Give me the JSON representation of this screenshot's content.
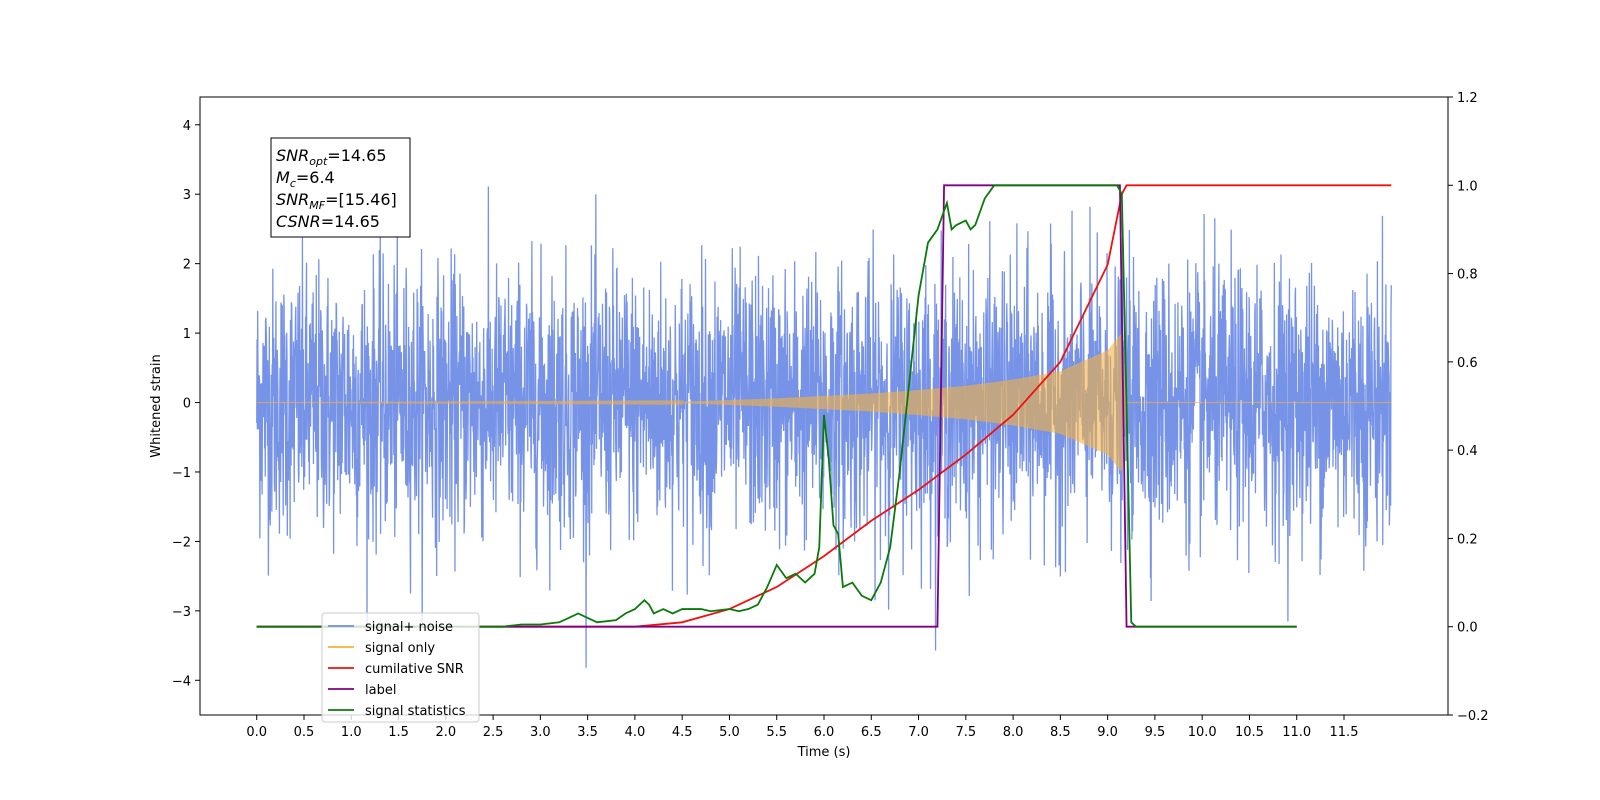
{
  "chart_data": {
    "type": "line",
    "title": "",
    "xlabel": "Time (s)",
    "ylabel": "Whitened strain",
    "xlim": [
      -0.6,
      12.6
    ],
    "ylim": [
      -4.5,
      4.4
    ],
    "y2lim": [
      -0.2,
      1.2
    ],
    "x_ticks": [
      0.0,
      0.5,
      1.0,
      1.5,
      2.0,
      2.5,
      3.0,
      3.5,
      4.0,
      4.5,
      5.0,
      5.5,
      6.0,
      6.5,
      7.0,
      7.5,
      8.0,
      8.5,
      9.0,
      9.5,
      10.0,
      10.5,
      11.0,
      11.5
    ],
    "x_tick_labels": [
      "0.0",
      "0.5",
      "1.0",
      "1.5",
      "2.0",
      "2.5",
      "3.0",
      "3.5",
      "4.0",
      "4.5",
      "5.0",
      "5.5",
      "6.0",
      "6.5",
      "7.0",
      "7.5",
      "8.0",
      "8.5",
      "9.0",
      "9.5",
      "10.0",
      "10.5",
      "11.0",
      "11.5"
    ],
    "y_ticks": [
      -4,
      -3,
      -2,
      -1,
      0,
      1,
      2,
      3,
      4
    ],
    "y_tick_labels": [
      "−4",
      "−3",
      "−2",
      "−1",
      "0",
      "1",
      "2",
      "3",
      "4"
    ],
    "y2_ticks": [
      -0.2,
      0.0,
      0.2,
      0.4,
      0.6,
      0.8,
      1.0,
      1.2
    ],
    "y2_tick_labels": [
      "−0.2",
      "0.0",
      "0.2",
      "0.4",
      "0.6",
      "0.8",
      "1.0",
      "1.2"
    ],
    "legend_position": "lower-left",
    "series": [
      {
        "name": "signal+ noise",
        "axis": "left",
        "color": "#6f8de6",
        "kind": "noise",
        "x_range": [
          0.0,
          12.0
        ],
        "sigma": 1.0,
        "peak_max": 4.0,
        "peak_min": -4.1
      },
      {
        "name": "signal only",
        "axis": "left",
        "color": "#f5b041",
        "kind": "chirp",
        "x_range": [
          0.0,
          12.0
        ],
        "envelope": [
          [
            0.0,
            0.0
          ],
          [
            4.5,
            0.01
          ],
          [
            5.5,
            0.06
          ],
          [
            6.5,
            0.13
          ],
          [
            7.0,
            0.18
          ],
          [
            7.5,
            0.24
          ],
          [
            8.0,
            0.33
          ],
          [
            8.5,
            0.45
          ],
          [
            9.0,
            0.75
          ],
          [
            9.15,
            1.0
          ],
          [
            9.2,
            0.0
          ],
          [
            12.0,
            0.0
          ]
        ]
      },
      {
        "name": "cumilative SNR",
        "axis": "right",
        "color": "#ee1111",
        "x": [
          0.0,
          4.0,
          4.5,
          5.0,
          5.5,
          6.0,
          6.5,
          7.0,
          7.5,
          8.0,
          8.5,
          9.0,
          9.15,
          9.2,
          12.0
        ],
        "y": [
          0.0,
          0.0,
          0.01,
          0.04,
          0.09,
          0.16,
          0.24,
          0.31,
          0.39,
          0.48,
          0.6,
          0.82,
          0.98,
          1.0,
          1.0
        ]
      },
      {
        "name": "label",
        "axis": "right",
        "color": "#800080",
        "x": [
          0.0,
          7.2,
          7.27,
          9.13,
          9.2,
          11.0
        ],
        "y": [
          0.0,
          0.0,
          1.0,
          1.0,
          0.0,
          0.0
        ]
      },
      {
        "name": "signal statistics",
        "axis": "right",
        "color": "#0a7a0a",
        "x": [
          0.0,
          2.6,
          2.8,
          3.0,
          3.2,
          3.3,
          3.4,
          3.5,
          3.6,
          3.8,
          3.9,
          4.0,
          4.1,
          4.15,
          4.2,
          4.3,
          4.4,
          4.5,
          4.6,
          4.7,
          4.8,
          5.0,
          5.1,
          5.2,
          5.3,
          5.4,
          5.5,
          5.6,
          5.7,
          5.8,
          5.9,
          5.95,
          6.0,
          6.05,
          6.1,
          6.15,
          6.2,
          6.3,
          6.4,
          6.5,
          6.6,
          6.7,
          6.8,
          6.9,
          7.0,
          7.1,
          7.2,
          7.3,
          7.35,
          7.4,
          7.5,
          7.55,
          7.6,
          7.7,
          7.8,
          7.9,
          8.0,
          8.5,
          9.1,
          9.15,
          9.2,
          9.25,
          9.3,
          9.5,
          11.0
        ],
        "y": [
          0.0,
          0.0,
          0.005,
          0.005,
          0.01,
          0.02,
          0.03,
          0.02,
          0.01,
          0.015,
          0.03,
          0.04,
          0.06,
          0.05,
          0.03,
          0.04,
          0.03,
          0.04,
          0.04,
          0.04,
          0.035,
          0.04,
          0.035,
          0.04,
          0.05,
          0.09,
          0.14,
          0.11,
          0.12,
          0.1,
          0.12,
          0.18,
          0.48,
          0.38,
          0.23,
          0.21,
          0.09,
          0.1,
          0.07,
          0.06,
          0.1,
          0.18,
          0.35,
          0.55,
          0.75,
          0.87,
          0.9,
          0.96,
          0.9,
          0.91,
          0.92,
          0.9,
          0.91,
          0.97,
          1.0,
          1.0,
          1.0,
          1.0,
          1.0,
          0.98,
          0.5,
          0.01,
          0.0,
          0.0,
          0.0
        ]
      }
    ],
    "annotation_box": {
      "lines": [
        {
          "main": "SNR",
          "sub": "opt",
          "value": "=14.65"
        },
        {
          "main": "M",
          "sub": "c",
          "value": "=6.4"
        },
        {
          "main": "SNR",
          "sub": "MF",
          "value": "=[15.46]"
        },
        {
          "main": "CSNR",
          "sub": "",
          "value": "=14.65"
        }
      ]
    },
    "legend": [
      {
        "label": "signal+ noise",
        "color": "#6f8de6"
      },
      {
        "label": "signal only",
        "color": "#f5b041"
      },
      {
        "label": "cumilative SNR",
        "color": "#ee1111"
      },
      {
        "label": "label",
        "color": "#800080"
      },
      {
        "label": "signal statistics",
        "color": "#0a7a0a"
      }
    ]
  }
}
